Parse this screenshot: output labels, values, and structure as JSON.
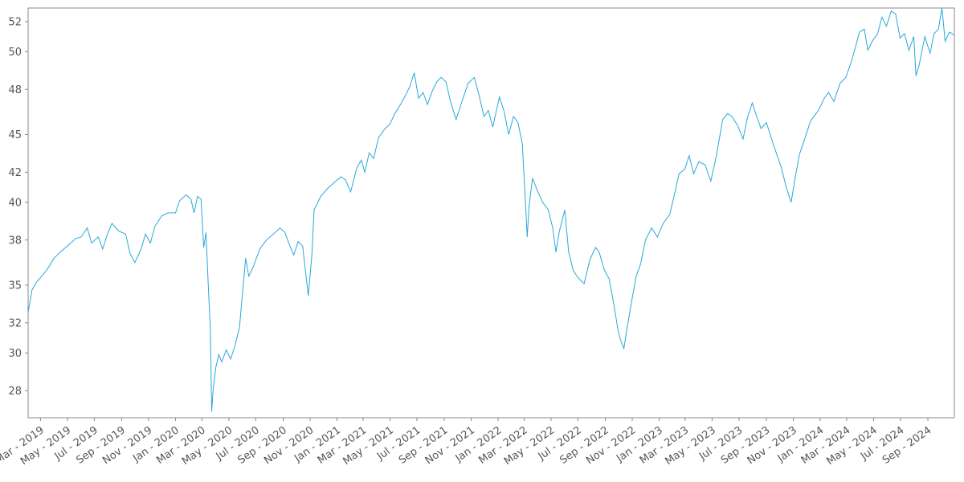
{
  "chart_data": {
    "type": "line",
    "title": "",
    "xlabel": "",
    "ylabel": "",
    "grid": false,
    "line_color": "#29a8d8",
    "axis_color": "#888888",
    "ylim": [
      26.0,
      53.2
    ],
    "xlim": [
      "2019-02-01",
      "2024-10-31"
    ],
    "y_ticks": [
      {
        "value": 27.8,
        "label": "28"
      },
      {
        "value": 30.3,
        "label": "30"
      },
      {
        "value": 32.3,
        "label": "32"
      },
      {
        "value": 34.8,
        "label": "35"
      },
      {
        "value": 37.8,
        "label": "38"
      },
      {
        "value": 40.3,
        "label": "40"
      },
      {
        "value": 42.3,
        "label": "42"
      },
      {
        "value": 44.8,
        "label": "45"
      },
      {
        "value": 47.8,
        "label": "48"
      },
      {
        "value": 50.3,
        "label": "50"
      },
      {
        "value": 52.3,
        "label": "52"
      }
    ],
    "x_ticks": [
      {
        "date": "2019-03-01",
        "label": "Mar - 2019"
      },
      {
        "date": "2019-05-01",
        "label": "May - 2019"
      },
      {
        "date": "2019-07-01",
        "label": "Jul - 2019"
      },
      {
        "date": "2019-09-01",
        "label": "Sep - 2019"
      },
      {
        "date": "2019-11-01",
        "label": "Nov - 2019"
      },
      {
        "date": "2020-01-01",
        "label": "Jan - 2020"
      },
      {
        "date": "2020-03-01",
        "label": "Mar - 2020"
      },
      {
        "date": "2020-05-01",
        "label": "May - 2020"
      },
      {
        "date": "2020-07-01",
        "label": "Jul - 2020"
      },
      {
        "date": "2020-09-01",
        "label": "Sep - 2020"
      },
      {
        "date": "2020-11-01",
        "label": "Nov - 2020"
      },
      {
        "date": "2021-01-01",
        "label": "Jan - 2021"
      },
      {
        "date": "2021-03-01",
        "label": "Mar - 2021"
      },
      {
        "date": "2021-05-01",
        "label": "May - 2021"
      },
      {
        "date": "2021-07-01",
        "label": "Jul - 2021"
      },
      {
        "date": "2021-09-01",
        "label": "Sep - 2021"
      },
      {
        "date": "2021-11-01",
        "label": "Nov - 2021"
      },
      {
        "date": "2022-01-01",
        "label": "Jan - 2022"
      },
      {
        "date": "2022-03-01",
        "label": "Mar - 2022"
      },
      {
        "date": "2022-05-01",
        "label": "May - 2022"
      },
      {
        "date": "2022-07-01",
        "label": "Jul - 2022"
      },
      {
        "date": "2022-09-01",
        "label": "Sep - 2022"
      },
      {
        "date": "2022-11-01",
        "label": "Nov - 2022"
      },
      {
        "date": "2023-01-01",
        "label": "Jan - 2023"
      },
      {
        "date": "2023-03-01",
        "label": "Mar - 2023"
      },
      {
        "date": "2023-05-01",
        "label": "May - 2023"
      },
      {
        "date": "2023-07-01",
        "label": "Jul - 2023"
      },
      {
        "date": "2023-09-01",
        "label": "Sep - 2023"
      },
      {
        "date": "2023-11-01",
        "label": "Nov - 2023"
      },
      {
        "date": "2024-01-01",
        "label": "Jan - 2024"
      },
      {
        "date": "2024-03-01",
        "label": "Mar - 2024"
      },
      {
        "date": "2024-05-01",
        "label": "May - 2024"
      },
      {
        "date": "2024-07-01",
        "label": "Jul - 2024"
      },
      {
        "date": "2024-09-01",
        "label": "Sep - 2024"
      }
    ],
    "series": [
      {
        "points": [
          [
            "2019-02-01",
            33.0
          ],
          [
            "2019-02-10",
            34.5
          ],
          [
            "2019-02-20",
            35.0
          ],
          [
            "2019-03-01",
            35.3
          ],
          [
            "2019-03-15",
            35.8
          ],
          [
            "2019-04-01",
            36.6
          ],
          [
            "2019-04-15",
            37.0
          ],
          [
            "2019-05-01",
            37.4
          ],
          [
            "2019-05-20",
            37.9
          ],
          [
            "2019-06-01",
            38.0
          ],
          [
            "2019-06-15",
            38.6
          ],
          [
            "2019-06-25",
            37.6
          ],
          [
            "2019-07-10",
            38.0
          ],
          [
            "2019-07-20",
            37.2
          ],
          [
            "2019-08-01",
            38.3
          ],
          [
            "2019-08-10",
            38.9
          ],
          [
            "2019-08-25",
            38.4
          ],
          [
            "2019-09-10",
            38.2
          ],
          [
            "2019-09-20",
            36.9
          ],
          [
            "2019-10-01",
            36.3
          ],
          [
            "2019-10-15",
            37.2
          ],
          [
            "2019-10-25",
            38.2
          ],
          [
            "2019-11-05",
            37.6
          ],
          [
            "2019-11-15",
            38.7
          ],
          [
            "2019-12-01",
            39.4
          ],
          [
            "2019-12-15",
            39.6
          ],
          [
            "2020-01-01",
            39.6
          ],
          [
            "2020-01-10",
            40.4
          ],
          [
            "2020-01-25",
            40.8
          ],
          [
            "2020-02-05",
            40.5
          ],
          [
            "2020-02-12",
            39.6
          ],
          [
            "2020-02-20",
            40.7
          ],
          [
            "2020-02-28",
            40.5
          ],
          [
            "2020-03-05",
            37.3
          ],
          [
            "2020-03-10",
            38.3
          ],
          [
            "2020-03-15",
            35.0
          ],
          [
            "2020-03-20",
            31.8
          ],
          [
            "2020-03-23",
            26.4
          ],
          [
            "2020-03-26",
            27.8
          ],
          [
            "2020-04-01",
            29.3
          ],
          [
            "2020-04-08",
            30.2
          ],
          [
            "2020-04-15",
            29.7
          ],
          [
            "2020-04-25",
            30.5
          ],
          [
            "2020-05-05",
            29.9
          ],
          [
            "2020-05-15",
            30.8
          ],
          [
            "2020-05-25",
            32.0
          ],
          [
            "2020-06-08",
            36.6
          ],
          [
            "2020-06-15",
            35.4
          ],
          [
            "2020-06-25",
            36.0
          ],
          [
            "2020-07-10",
            37.2
          ],
          [
            "2020-07-25",
            37.8
          ],
          [
            "2020-08-10",
            38.2
          ],
          [
            "2020-08-25",
            38.6
          ],
          [
            "2020-09-05",
            38.3
          ],
          [
            "2020-09-15",
            37.5
          ],
          [
            "2020-09-25",
            36.8
          ],
          [
            "2020-10-05",
            37.7
          ],
          [
            "2020-10-15",
            37.4
          ],
          [
            "2020-10-28",
            34.1
          ],
          [
            "2020-11-05",
            36.8
          ],
          [
            "2020-11-10",
            39.8
          ],
          [
            "2020-11-25",
            40.7
          ],
          [
            "2020-12-10",
            41.2
          ],
          [
            "2020-12-25",
            41.6
          ],
          [
            "2021-01-10",
            42.0
          ],
          [
            "2021-01-20",
            41.8
          ],
          [
            "2021-02-01",
            41.0
          ],
          [
            "2021-02-15",
            42.6
          ],
          [
            "2021-02-25",
            43.1
          ],
          [
            "2021-03-05",
            42.3
          ],
          [
            "2021-03-15",
            43.6
          ],
          [
            "2021-03-25",
            43.2
          ],
          [
            "2021-04-05",
            44.6
          ],
          [
            "2021-04-20",
            45.2
          ],
          [
            "2021-05-01",
            45.5
          ],
          [
            "2021-05-12",
            46.2
          ],
          [
            "2021-05-25",
            46.8
          ],
          [
            "2021-06-05",
            47.4
          ],
          [
            "2021-06-15",
            48.0
          ],
          [
            "2021-06-25",
            48.9
          ],
          [
            "2021-07-05",
            47.2
          ],
          [
            "2021-07-15",
            47.6
          ],
          [
            "2021-07-25",
            46.8
          ],
          [
            "2021-08-05",
            47.7
          ],
          [
            "2021-08-15",
            48.3
          ],
          [
            "2021-08-25",
            48.6
          ],
          [
            "2021-09-05",
            48.3
          ],
          [
            "2021-09-15",
            47.0
          ],
          [
            "2021-09-28",
            45.8
          ],
          [
            "2021-10-10",
            46.9
          ],
          [
            "2021-10-25",
            48.2
          ],
          [
            "2021-11-08",
            48.6
          ],
          [
            "2021-11-20",
            47.3
          ],
          [
            "2021-11-30",
            46.0
          ],
          [
            "2021-12-10",
            46.4
          ],
          [
            "2021-12-20",
            45.3
          ],
          [
            "2022-01-04",
            47.3
          ],
          [
            "2022-01-15",
            46.3
          ],
          [
            "2022-01-25",
            44.8
          ],
          [
            "2022-02-05",
            46.0
          ],
          [
            "2022-02-15",
            45.6
          ],
          [
            "2022-02-25",
            44.2
          ],
          [
            "2022-03-08",
            38.0
          ],
          [
            "2022-03-12",
            40.0
          ],
          [
            "2022-03-20",
            41.9
          ],
          [
            "2022-04-01",
            41.0
          ],
          [
            "2022-04-12",
            40.3
          ],
          [
            "2022-04-25",
            39.8
          ],
          [
            "2022-05-05",
            38.6
          ],
          [
            "2022-05-12",
            37.0
          ],
          [
            "2022-05-20",
            38.4
          ],
          [
            "2022-06-01",
            39.8
          ],
          [
            "2022-06-10",
            37.0
          ],
          [
            "2022-06-20",
            35.8
          ],
          [
            "2022-07-01",
            35.3
          ],
          [
            "2022-07-15",
            34.9
          ],
          [
            "2022-07-28",
            36.5
          ],
          [
            "2022-08-10",
            37.3
          ],
          [
            "2022-08-18",
            37.0
          ],
          [
            "2022-08-30",
            35.8
          ],
          [
            "2022-09-10",
            35.2
          ],
          [
            "2022-09-20",
            33.6
          ],
          [
            "2022-09-30",
            31.8
          ],
          [
            "2022-10-05",
            31.2
          ],
          [
            "2022-10-13",
            30.6
          ],
          [
            "2022-10-20",
            31.9
          ],
          [
            "2022-10-31",
            33.8
          ],
          [
            "2022-11-10",
            35.4
          ],
          [
            "2022-11-20",
            36.2
          ],
          [
            "2022-12-01",
            37.8
          ],
          [
            "2022-12-15",
            38.6
          ],
          [
            "2022-12-28",
            38.0
          ],
          [
            "2023-01-10",
            38.9
          ],
          [
            "2023-01-25",
            39.5
          ],
          [
            "2023-02-03",
            40.6
          ],
          [
            "2023-02-15",
            42.2
          ],
          [
            "2023-02-28",
            42.5
          ],
          [
            "2023-03-10",
            43.4
          ],
          [
            "2023-03-20",
            42.2
          ],
          [
            "2023-04-01",
            43.0
          ],
          [
            "2023-04-15",
            42.8
          ],
          [
            "2023-04-28",
            41.7
          ],
          [
            "2023-05-10",
            43.3
          ],
          [
            "2023-05-25",
            45.8
          ],
          [
            "2023-06-05",
            46.2
          ],
          [
            "2023-06-15",
            46.0
          ],
          [
            "2023-06-28",
            45.4
          ],
          [
            "2023-07-10",
            44.5
          ],
          [
            "2023-07-20",
            45.9
          ],
          [
            "2023-07-31",
            46.9
          ],
          [
            "2023-08-10",
            46.0
          ],
          [
            "2023-08-20",
            45.2
          ],
          [
            "2023-09-01",
            45.6
          ],
          [
            "2023-09-15",
            44.3
          ],
          [
            "2023-09-28",
            43.2
          ],
          [
            "2023-10-05",
            42.6
          ],
          [
            "2023-10-15",
            41.4
          ],
          [
            "2023-10-27",
            40.3
          ],
          [
            "2023-11-05",
            41.9
          ],
          [
            "2023-11-15",
            43.5
          ],
          [
            "2023-11-28",
            44.6
          ],
          [
            "2023-12-10",
            45.7
          ],
          [
            "2023-12-28",
            46.4
          ],
          [
            "2024-01-10",
            47.2
          ],
          [
            "2024-01-20",
            47.6
          ],
          [
            "2024-02-01",
            47.0
          ],
          [
            "2024-02-15",
            48.2
          ],
          [
            "2024-02-28",
            48.6
          ],
          [
            "2024-03-10",
            49.5
          ],
          [
            "2024-03-20",
            50.5
          ],
          [
            "2024-03-30",
            51.6
          ],
          [
            "2024-04-10",
            51.8
          ],
          [
            "2024-04-18",
            50.4
          ],
          [
            "2024-04-28",
            51.0
          ],
          [
            "2024-05-10",
            51.5
          ],
          [
            "2024-05-20",
            52.6
          ],
          [
            "2024-05-30",
            52.0
          ],
          [
            "2024-06-10",
            53.0
          ],
          [
            "2024-06-20",
            52.8
          ],
          [
            "2024-06-30",
            51.2
          ],
          [
            "2024-07-10",
            51.5
          ],
          [
            "2024-07-20",
            50.4
          ],
          [
            "2024-07-31",
            51.3
          ],
          [
            "2024-08-05",
            48.7
          ],
          [
            "2024-08-12",
            49.4
          ],
          [
            "2024-08-25",
            51.3
          ],
          [
            "2024-09-06",
            50.2
          ],
          [
            "2024-09-15",
            51.5
          ],
          [
            "2024-09-25",
            51.8
          ],
          [
            "2024-10-03",
            53.2
          ],
          [
            "2024-10-10",
            51.0
          ],
          [
            "2024-10-20",
            51.6
          ],
          [
            "2024-10-31",
            51.4
          ]
        ]
      }
    ]
  }
}
